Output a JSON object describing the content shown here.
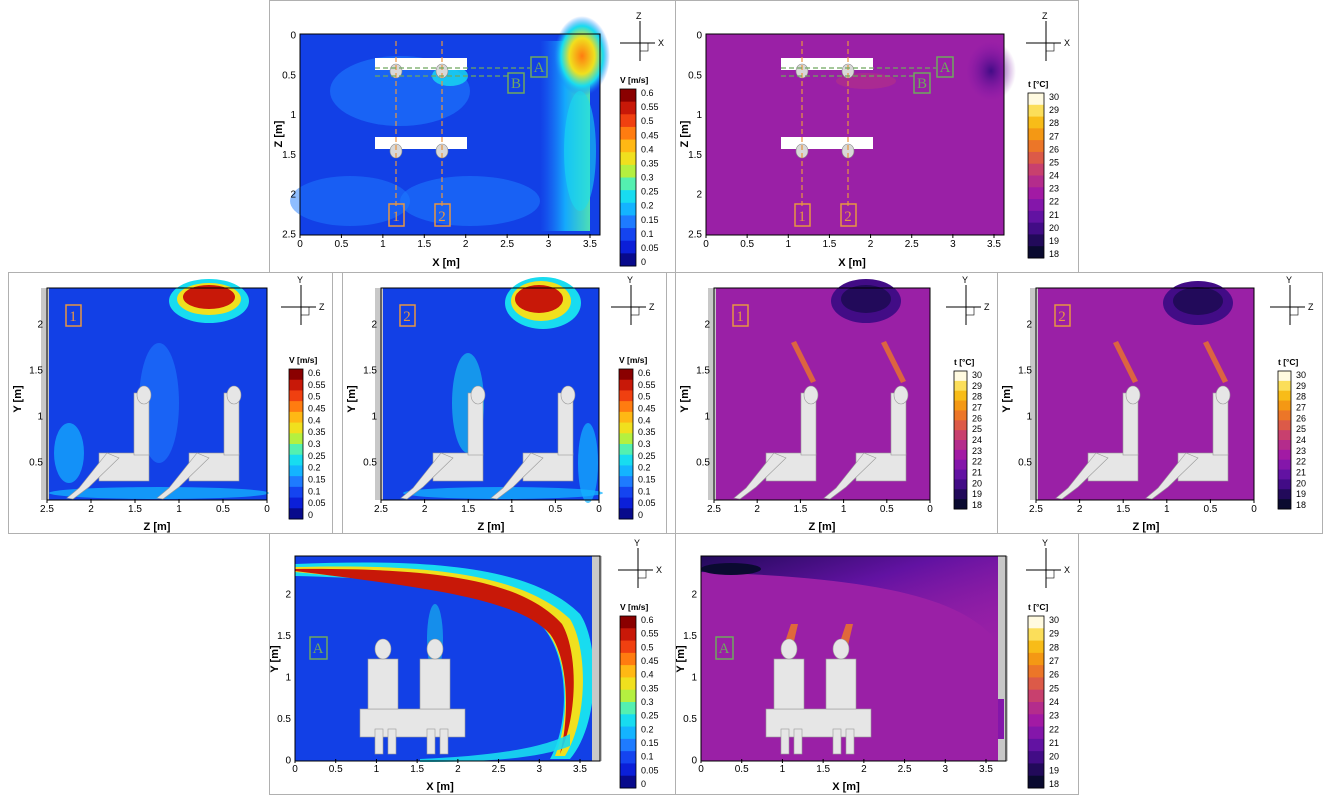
{
  "colors": {
    "velocity_scale": [
      "#080a8c",
      "#0b1fd8",
      "#1444f0",
      "#1e7bff",
      "#14b4ff",
      "#18dcf0",
      "#54f0b0",
      "#b4f040",
      "#f0e01e",
      "#ffb814",
      "#ff7c10",
      "#f04010",
      "#c81808",
      "#8a0000"
    ],
    "temperature_scale": [
      "#0a0a30",
      "#220a5a",
      "#420c86",
      "#6212a2",
      "#8416aa",
      "#a21aa4",
      "#b42c8c",
      "#c8406e",
      "#dc5a48",
      "#ec7628",
      "#f49814",
      "#f8bc18",
      "#fbde5a",
      "#fffae0"
    ],
    "marker_orange": "#e89640",
    "marker_green": "#6fa85e",
    "bg_velocity": "#1240e6",
    "bg_temperature": "#9a20a6"
  },
  "chart_data": [
    {
      "id": "top-left",
      "type": "heatmap",
      "quantity": "velocity",
      "xlabel": "X [m]",
      "ylabel": "Z [m]",
      "xticks": [
        "0",
        "0.5",
        "1",
        "1.5",
        "2",
        "2.5",
        "3",
        "3.5"
      ],
      "yticks": [
        "0",
        "0.5",
        "1",
        "1.5",
        "2",
        "2.5"
      ],
      "colorbar": {
        "title": "V [m/s]",
        "ticks": [
          "0.6",
          "0.55",
          "0.5",
          "0.45",
          "0.4",
          "0.35",
          "0.3",
          "0.25",
          "0.2",
          "0.15",
          "0.1",
          "0.05",
          "0"
        ]
      },
      "triad": {
        "h": "X",
        "v": "Z"
      },
      "markers": [
        "1",
        "2",
        "A",
        "B"
      ]
    },
    {
      "id": "top-right",
      "type": "heatmap",
      "quantity": "temperature",
      "xlabel": "X [m]",
      "ylabel": "Z [m]",
      "xticks": [
        "0",
        "0.5",
        "1",
        "1.5",
        "2",
        "2.5",
        "3",
        "3.5"
      ],
      "yticks": [
        "0",
        "0.5",
        "1",
        "1.5",
        "2",
        "2.5"
      ],
      "colorbar": {
        "title": "t [°C]",
        "ticks": [
          "30",
          "29",
          "28",
          "27",
          "26",
          "25",
          "24",
          "23",
          "22",
          "21",
          "20",
          "19",
          "18"
        ]
      },
      "triad": {
        "h": "X",
        "v": "Z"
      },
      "markers": [
        "1",
        "2",
        "A",
        "B"
      ]
    },
    {
      "id": "mid-1",
      "type": "heatmap",
      "quantity": "velocity",
      "xlabel": "Z [m]",
      "ylabel": "Y [m]",
      "xticks": [
        "2.5",
        "2",
        "1.5",
        "1",
        "0.5",
        "0"
      ],
      "yticks": [
        "0.5",
        "1",
        "1.5",
        "2"
      ],
      "colorbar": {
        "title": "V [m/s]",
        "ticks": [
          "0.6",
          "0.55",
          "0.5",
          "0.45",
          "0.4",
          "0.35",
          "0.3",
          "0.25",
          "0.2",
          "0.15",
          "0.1",
          "0.05",
          "0"
        ]
      },
      "triad": {
        "h": "Z",
        "v": "Y"
      },
      "markers": [
        "1"
      ]
    },
    {
      "id": "mid-2",
      "type": "heatmap",
      "quantity": "velocity",
      "xlabel": "Z [m]",
      "ylabel": "Y [m]",
      "xticks": [
        "2.5",
        "2",
        "1.5",
        "1",
        "0.5",
        "0"
      ],
      "yticks": [
        "0.5",
        "1",
        "1.5",
        "2"
      ],
      "colorbar": {
        "title": "V [m/s]",
        "ticks": [
          "0.6",
          "0.55",
          "0.5",
          "0.45",
          "0.4",
          "0.35",
          "0.3",
          "0.25",
          "0.2",
          "0.15",
          "0.1",
          "0.05",
          "0"
        ]
      },
      "triad": {
        "h": "Z",
        "v": "Y"
      },
      "markers": [
        "2"
      ]
    },
    {
      "id": "mid-3",
      "type": "heatmap",
      "quantity": "temperature",
      "xlabel": "Z [m]",
      "ylabel": "Y [m]",
      "xticks": [
        "2.5",
        "2",
        "1.5",
        "1",
        "0.5",
        "0"
      ],
      "yticks": [
        "0.5",
        "1",
        "1.5",
        "2"
      ],
      "colorbar": {
        "title": "t [°C]",
        "ticks": [
          "30",
          "29",
          "28",
          "27",
          "26",
          "25",
          "24",
          "23",
          "22",
          "21",
          "20",
          "19",
          "18"
        ]
      },
      "triad": {
        "h": "Z",
        "v": "Y"
      },
      "markers": [
        "1"
      ]
    },
    {
      "id": "mid-4",
      "type": "heatmap",
      "quantity": "temperature",
      "xlabel": "Z [m]",
      "ylabel": "Y [m]",
      "xticks": [
        "2.5",
        "2",
        "1.5",
        "1",
        "0.5",
        "0"
      ],
      "yticks": [
        "0.5",
        "1",
        "1.5",
        "2"
      ],
      "colorbar": {
        "title": "t [°C]",
        "ticks": [
          "30",
          "29",
          "28",
          "27",
          "26",
          "25",
          "24",
          "23",
          "22",
          "21",
          "20",
          "19",
          "18"
        ]
      },
      "triad": {
        "h": "Z",
        "v": "Y"
      },
      "markers": [
        "2"
      ]
    },
    {
      "id": "bottom-left",
      "type": "heatmap",
      "quantity": "velocity",
      "xlabel": "X [m]",
      "ylabel": "Y [m]",
      "xticks": [
        "0",
        "0.5",
        "1",
        "1.5",
        "2",
        "2.5",
        "3",
        "3.5"
      ],
      "yticks": [
        "0",
        "0.5",
        "1",
        "1.5",
        "2"
      ],
      "colorbar": {
        "title": "V [m/s]",
        "ticks": [
          "0.6",
          "0.55",
          "0.5",
          "0.45",
          "0.4",
          "0.35",
          "0.3",
          "0.25",
          "0.2",
          "0.15",
          "0.1",
          "0.05",
          "0"
        ]
      },
      "triad": {
        "h": "X",
        "v": "Y"
      },
      "markers": [
        "A"
      ]
    },
    {
      "id": "bottom-right",
      "type": "heatmap",
      "quantity": "temperature",
      "xlabel": "X [m]",
      "ylabel": "Y [m]",
      "xticks": [
        "0",
        "0.5",
        "1",
        "1.5",
        "2",
        "2.5",
        "3",
        "3.5"
      ],
      "yticks": [
        "0",
        "0.5",
        "1",
        "1.5",
        "2"
      ],
      "colorbar": {
        "title": "t [°C]",
        "ticks": [
          "30",
          "29",
          "28",
          "27",
          "26",
          "25",
          "24",
          "23",
          "22",
          "21",
          "20",
          "19",
          "18"
        ]
      },
      "triad": {
        "h": "X",
        "v": "Y"
      },
      "markers": [
        "A"
      ]
    }
  ]
}
